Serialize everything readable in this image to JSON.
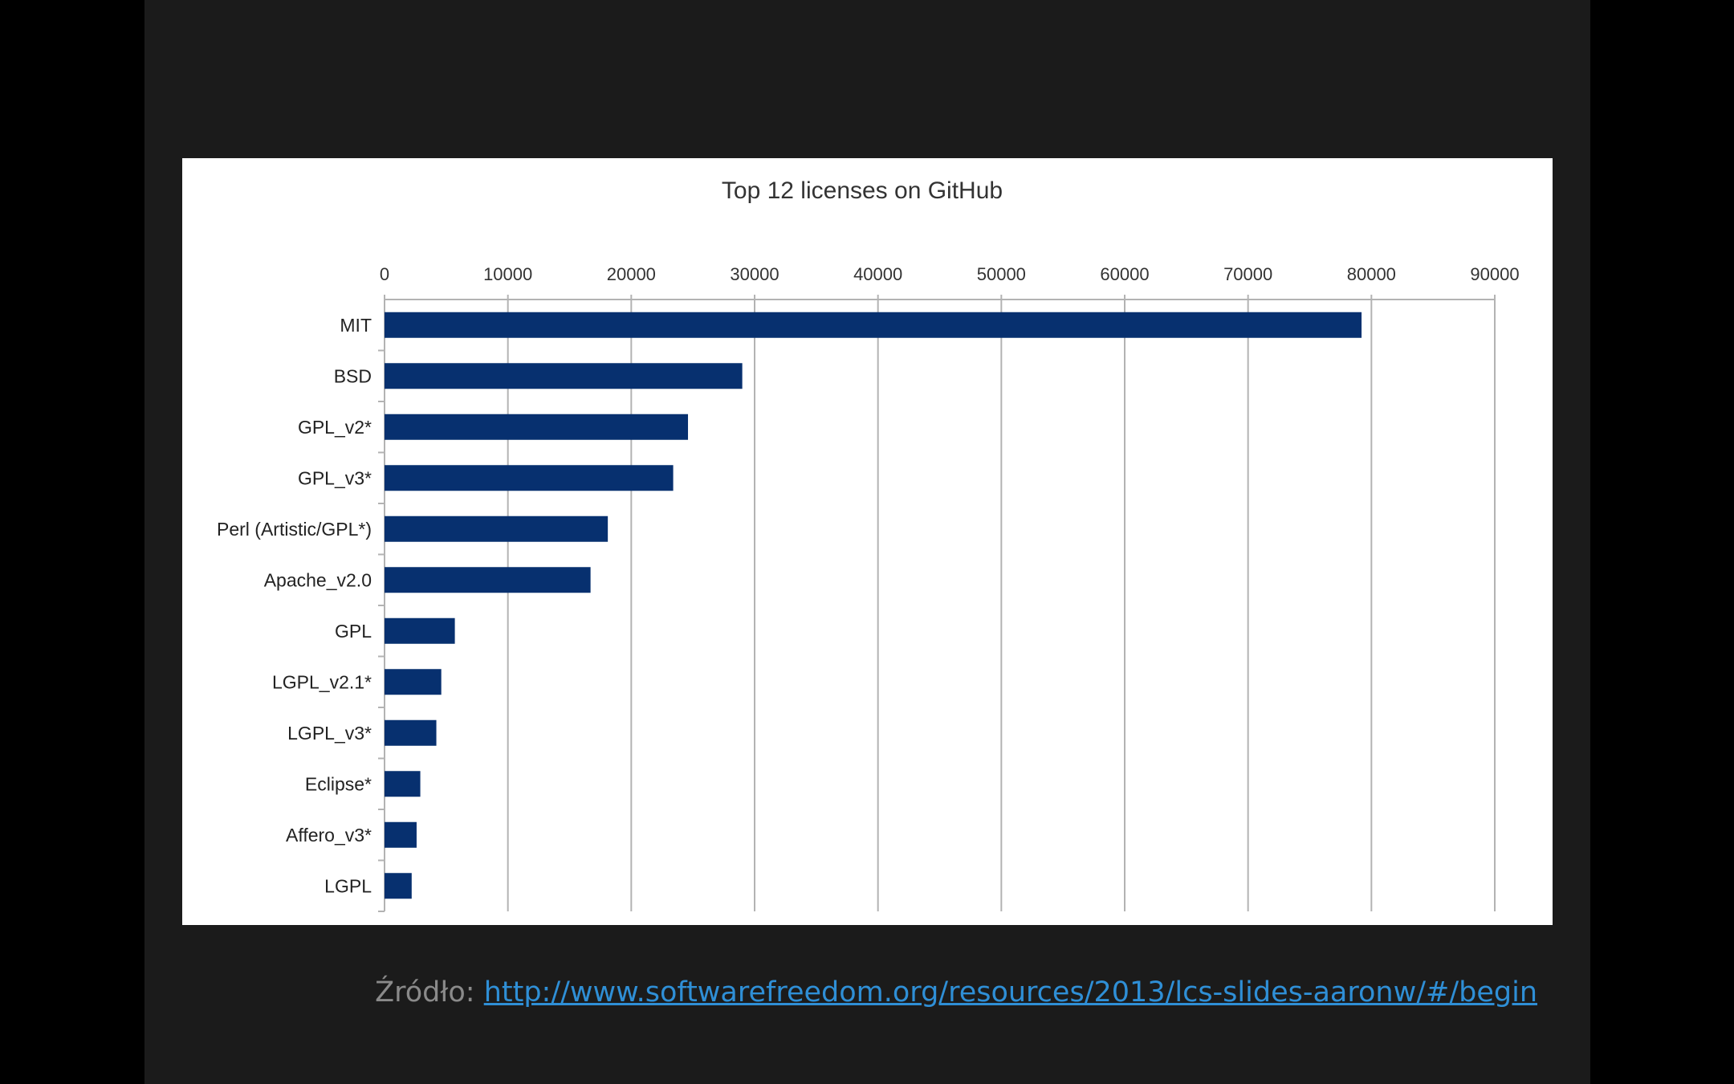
{
  "chart_data": {
    "type": "bar",
    "orientation": "horizontal",
    "title": "Top 12 licenses on GitHub",
    "xlabel": "",
    "ylabel": "",
    "categories": [
      "MIT",
      "BSD",
      "GPL_v2*",
      "GPL_v3*",
      "Perl (Artistic/GPL*)",
      "Apache_v2.0",
      "GPL",
      "LGPL_v2.1*",
      "LGPL_v3*",
      "Eclipse*",
      "Affero_v3*",
      "LGPL"
    ],
    "values": [
      79200,
      29000,
      24600,
      23400,
      18100,
      16700,
      5700,
      4600,
      4200,
      2900,
      2600,
      2200
    ],
    "xlim": [
      0,
      90000
    ],
    "xticks": [
      "0",
      "10000",
      "20000",
      "30000",
      "40000",
      "50000",
      "60000",
      "70000",
      "80000",
      "90000"
    ],
    "x_axis_position": "top",
    "grid": true,
    "legend": "none",
    "bar_color": "#07306f"
  },
  "caption": {
    "label": "Źródło:",
    "link": "http://www.softwarefreedom.org/resources/2013/lcs-slides-aaronw/#/begin"
  }
}
